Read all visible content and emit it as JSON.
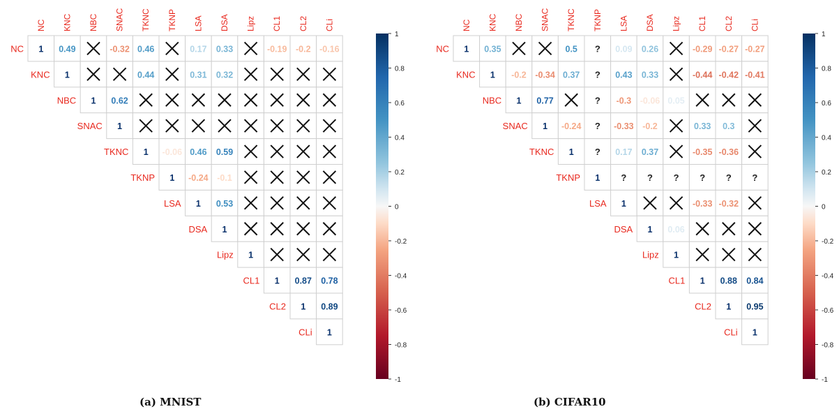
{
  "captions": {
    "a": "(a) MNIST",
    "b": "(b) CIFAR10"
  },
  "colors": {
    "label_red": "#e8281e",
    "cross": "#111111",
    "grid": "#cccccc",
    "diag": "#08306b"
  },
  "legend": {
    "ticks": [
      "1",
      "0.8",
      "0.6",
      "0.4",
      "0.2",
      "0",
      "-0.2",
      "-0.4",
      "-0.6",
      "-0.8",
      "-1"
    ]
  },
  "chart_data": [
    {
      "type": "heatmap",
      "title": "(a) MNIST",
      "variables": [
        "NC",
        "KNC",
        "NBC",
        "SNAC",
        "TKNC",
        "TKNP",
        "LSA",
        "DSA",
        "Lipz",
        "CL1",
        "CL2",
        "CLi"
      ],
      "value_range": [
        -1,
        1
      ],
      "legend_placement": "right",
      "cells": [
        [
          "1",
          "0.49",
          "x",
          "-0.32",
          "0.46",
          "x",
          "0.17",
          "0.33",
          "x",
          "-0.19",
          "-0.2",
          "-0.16"
        ],
        [
          "1",
          "x",
          "x",
          "0.44",
          "x",
          "0.31",
          "0.32",
          "x",
          "x",
          "x",
          "x"
        ],
        [
          "1",
          "0.62",
          "x",
          "x",
          "x",
          "x",
          "x",
          "x",
          "x",
          "x"
        ],
        [
          "1",
          "x",
          "x",
          "x",
          "x",
          "x",
          "x",
          "x",
          "x"
        ],
        [
          "1",
          "-0.06",
          "0.46",
          "0.59",
          "x",
          "x",
          "x",
          "x"
        ],
        [
          "1",
          "-0.24",
          "-0.1",
          "x",
          "x",
          "x",
          "x"
        ],
        [
          "1",
          "0.53",
          "x",
          "x",
          "x",
          "x"
        ],
        [
          "1",
          "x",
          "x",
          "x",
          "x"
        ],
        [
          "1",
          "x",
          "x",
          "x"
        ],
        [
          "1",
          "0.87",
          "0.78"
        ],
        [
          "1",
          "0.89"
        ],
        [
          "1"
        ]
      ]
    },
    {
      "type": "heatmap",
      "title": "(b) CIFAR10",
      "variables": [
        "NC",
        "KNC",
        "NBC",
        "SNAC",
        "TKNC",
        "TKNP",
        "LSA",
        "DSA",
        "Lipz",
        "CL1",
        "CL2",
        "CLi"
      ],
      "value_range": [
        -1,
        1
      ],
      "legend_placement": "right",
      "cells": [
        [
          "1",
          "0.35",
          "x",
          "x",
          "0.5",
          "?",
          "0.09",
          "0.26",
          "x",
          "-0.29",
          "-0.27",
          "-0.27"
        ],
        [
          "1",
          "-0.2",
          "-0.34",
          "0.37",
          "?",
          "0.43",
          "0.33",
          "x",
          "-0.44",
          "-0.42",
          "-0.41"
        ],
        [
          "1",
          "0.77",
          "x",
          "?",
          "-0.3",
          "-0.06",
          "0.05",
          "x",
          "x",
          "x"
        ],
        [
          "1",
          "-0.24",
          "?",
          "-0.33",
          "-0.2",
          "x",
          "0.33",
          "0.3",
          "x"
        ],
        [
          "1",
          "?",
          "0.17",
          "0.37",
          "x",
          "-0.35",
          "-0.36",
          "x"
        ],
        [
          "1",
          "?",
          "?",
          "?",
          "?",
          "?",
          "?"
        ],
        [
          "1",
          "x",
          "x",
          "-0.33",
          "-0.32",
          "x"
        ],
        [
          "1",
          "0.06",
          "x",
          "x",
          "x"
        ],
        [
          "1",
          "x",
          "x",
          "x"
        ],
        [
          "1",
          "0.88",
          "0.84"
        ],
        [
          "1",
          "0.95"
        ],
        [
          "1"
        ]
      ]
    }
  ]
}
